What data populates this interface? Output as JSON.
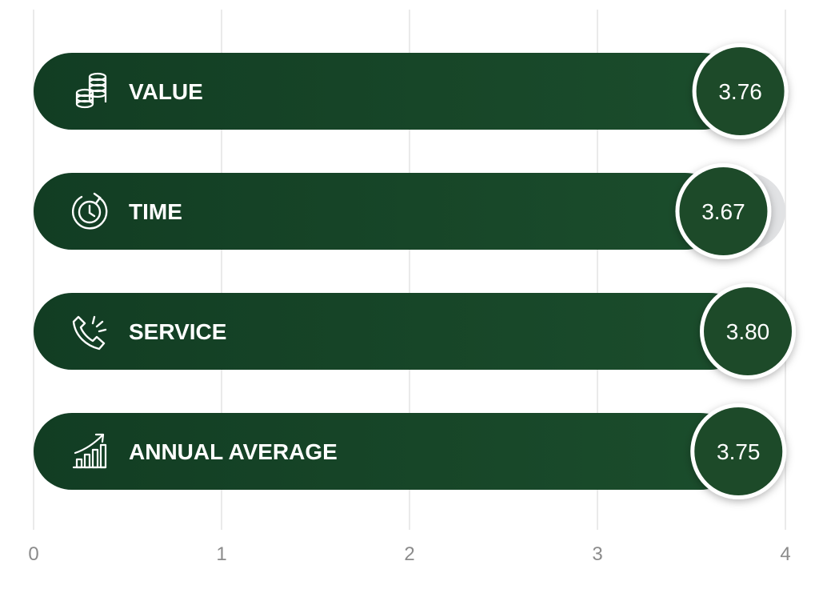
{
  "chart_data": {
    "type": "bar",
    "orientation": "horizontal",
    "categories": [
      "VALUE",
      "TIME",
      "SERVICE",
      "ANNUAL AVERAGE"
    ],
    "icons": [
      "coins-icon",
      "clock-arrow-icon",
      "phone-ringing-icon",
      "growth-chart-icon"
    ],
    "values": [
      3.76,
      3.67,
      3.8,
      3.75
    ],
    "value_labels": [
      "3.76",
      "3.67",
      "3.80",
      "3.75"
    ],
    "xlim": [
      0,
      4
    ],
    "x_ticks": [
      "0",
      "1",
      "2",
      "3",
      "4"
    ],
    "grid": "vertical",
    "colors": {
      "bar_start": "#123d23",
      "bar_end": "#1b4d2c",
      "track": "#e1e2e4",
      "badge": "#1d4a29",
      "badge_ring": "#ffffff",
      "grid": "#e3e3e3",
      "tick_text": "#8b8b8b",
      "label_text": "#ffffff"
    }
  }
}
